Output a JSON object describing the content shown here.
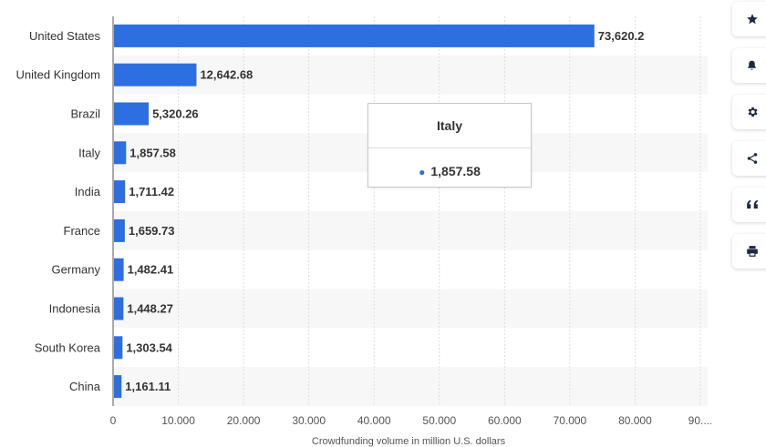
{
  "chart_data": {
    "type": "bar",
    "orientation": "horizontal",
    "categories": [
      "United States",
      "United Kingdom",
      "Brazil",
      "Italy",
      "India",
      "France",
      "Germany",
      "Indonesia",
      "South Korea",
      "China"
    ],
    "values": [
      73620.2,
      12642.68,
      5320.26,
      1857.58,
      1711.42,
      1659.73,
      1482.41,
      1448.27,
      1303.54,
      1161.11
    ],
    "value_labels": [
      "73,620.2",
      "12,642.68",
      "5,320.26",
      "1,857.58",
      "1,711.42",
      "1,659.73",
      "1,482.41",
      "1,448.27",
      "1,303.54",
      "1,161.11"
    ],
    "xlabel": "Crowdfunding volume in million U.S. dollars",
    "xlim": [
      0,
      90000
    ],
    "x_ticks": [
      0,
      10000,
      20000,
      30000,
      40000,
      50000,
      60000,
      70000,
      80000,
      90000
    ],
    "x_tick_labels": [
      "0",
      "10.000",
      "20.000",
      "30.000",
      "40.000",
      "50.000",
      "60.000",
      "70.000",
      "80.000",
      "90...."
    ],
    "grid": true,
    "bar_color": "#2d6fe0"
  },
  "tooltip": {
    "title": "Italy",
    "value": "1,857.58"
  },
  "sidebar": {
    "buttons": [
      "star-icon",
      "bell-icon",
      "gear-icon",
      "share-icon",
      "quote-icon",
      "print-icon"
    ]
  },
  "colors": {
    "bar": "#2d6fe0",
    "stripe": "#f7f7f7",
    "icon": "#1e2a44"
  }
}
